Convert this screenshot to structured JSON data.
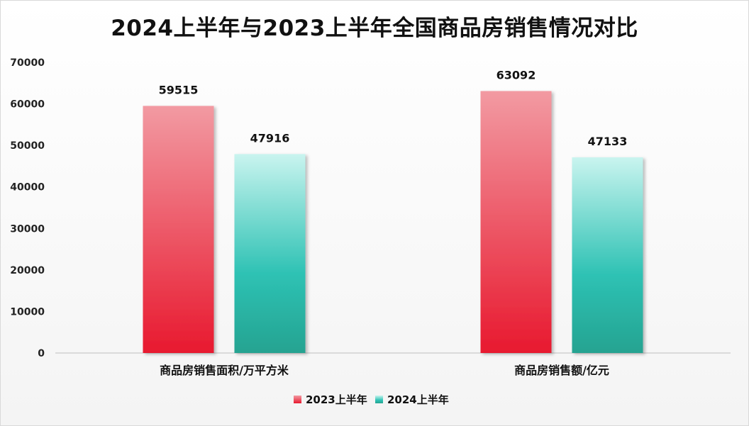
{
  "chart_data": {
    "type": "bar",
    "title": "2024上半年与2023上半年全国商品房销售情况对比",
    "categories": [
      "商品房销售面积/万平方米",
      "商品房销售额/亿元"
    ],
    "series": [
      {
        "name": "2023上半年",
        "values": [
          59515,
          63092
        ]
      },
      {
        "name": "2024上半年",
        "values": [
          47916,
          47133
        ]
      }
    ],
    "ylim": [
      0,
      70000
    ],
    "yticks": [
      0,
      10000,
      20000,
      30000,
      40000,
      50000,
      60000,
      70000
    ],
    "grid": false,
    "legend": "bottom",
    "colors": {
      "series0_top": "#f29aa2",
      "series0_bottom": "#e8192f",
      "series1_top": "#c9f4ef",
      "series1_mid": "#2ec2b4",
      "series1_bottom": "#25a391"
    }
  }
}
